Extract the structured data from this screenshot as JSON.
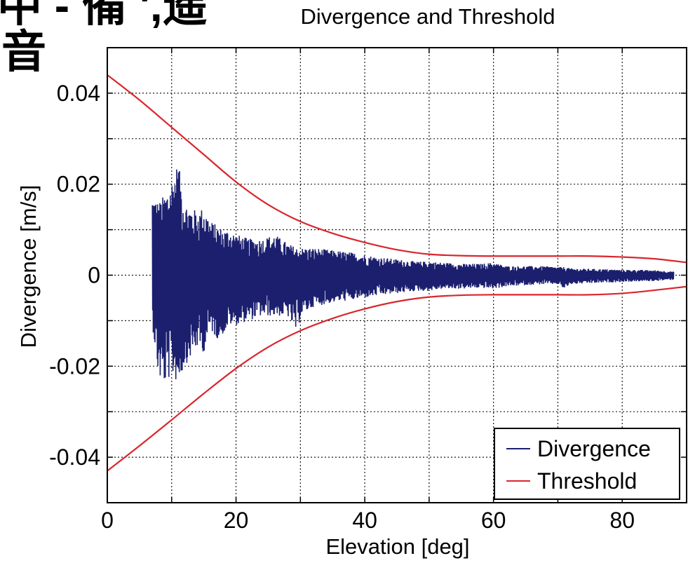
{
  "corner_text": {
    "line1": "中 - 備 ',遥",
    "line2": "音"
  },
  "colors": {
    "divergence": "#1b1f6e",
    "threshold": "#d9262e",
    "grid": "#1a1a1a",
    "axis": "#000000",
    "background": "#ffffff"
  },
  "chart_data": {
    "type": "line",
    "title": "Divergence  and Threshold",
    "xlabel": "Elevation [deg]",
    "ylabel": "Divergence [m/s]",
    "xlim": [
      0,
      90
    ],
    "ylim": [
      -0.05,
      0.05
    ],
    "grid": true,
    "grid_style": "dotted",
    "xticks": [
      0,
      10,
      20,
      30,
      40,
      50,
      60,
      70,
      80,
      90
    ],
    "yticks": [
      -0.05,
      -0.04,
      -0.03,
      -0.02,
      -0.01,
      0,
      0.01,
      0.02,
      0.03,
      0.04,
      0.05
    ],
    "xtick_labels": [
      {
        "value": 0,
        "label": "0"
      },
      {
        "value": 20,
        "label": "20"
      },
      {
        "value": 40,
        "label": "40"
      },
      {
        "value": 60,
        "label": "60"
      },
      {
        "value": 80,
        "label": "80"
      }
    ],
    "ytick_labels": [
      {
        "value": 0.04,
        "label": "0.04"
      },
      {
        "value": 0.02,
        "label": "0.02"
      },
      {
        "value": 0,
        "label": "0"
      },
      {
        "value": -0.02,
        "label": "-0.02"
      },
      {
        "value": -0.04,
        "label": "-0.04"
      }
    ],
    "legend": {
      "position": "bottom-right",
      "entries": [
        "Divergence",
        "Threshold"
      ]
    },
    "series": [
      {
        "name": "Divergence",
        "kind": "noisy-band",
        "x": [
          7,
          8,
          9,
          10,
          11,
          12,
          13,
          14,
          15,
          16,
          17,
          18,
          19,
          20,
          22,
          24,
          26,
          28,
          29.5,
          30,
          32,
          35,
          38,
          40,
          42,
          45,
          48,
          50,
          52,
          55,
          58,
          60,
          62,
          65,
          68,
          70,
          71,
          72,
          75,
          78,
          80,
          82,
          85,
          88
        ],
        "upper": [
          0.018,
          0.016,
          0.018,
          0.021,
          0.025,
          0.016,
          0.015,
          0.014,
          0.015,
          0.012,
          0.011,
          0.01,
          0.01,
          0.009,
          0.008,
          0.008,
          0.009,
          0.007,
          0.006,
          0.006,
          0.006,
          0.0055,
          0.005,
          0.0045,
          0.004,
          0.0035,
          0.003,
          0.003,
          0.0028,
          0.0025,
          0.0025,
          0.0028,
          0.002,
          0.002,
          0.002,
          0.0018,
          0.0018,
          0.0015,
          0.0014,
          0.0013,
          0.0012,
          0.0012,
          0.0011,
          0.0008
        ],
        "lower": [
          -0.011,
          -0.023,
          -0.024,
          -0.022,
          -0.024,
          -0.02,
          -0.018,
          -0.016,
          -0.017,
          -0.012,
          -0.014,
          -0.013,
          -0.011,
          -0.011,
          -0.01,
          -0.009,
          -0.009,
          -0.009,
          -0.013,
          -0.009,
          -0.007,
          -0.006,
          -0.0055,
          -0.005,
          -0.0045,
          -0.004,
          -0.0035,
          -0.0035,
          -0.003,
          -0.003,
          -0.0028,
          -0.003,
          -0.0025,
          -0.0022,
          -0.002,
          -0.002,
          -0.003,
          -0.002,
          -0.0018,
          -0.0016,
          -0.0015,
          -0.0014,
          -0.0013,
          -0.001
        ]
      },
      {
        "name": "Threshold",
        "kind": "envelope",
        "x": [
          0,
          5,
          10,
          15,
          20,
          25,
          30,
          35,
          40,
          45,
          50,
          55,
          60,
          65,
          70,
          75,
          80,
          85,
          90
        ],
        "upper": [
          0.044,
          0.0385,
          0.0325,
          0.0265,
          0.0205,
          0.0155,
          0.0118,
          0.0092,
          0.0072,
          0.0056,
          0.0046,
          0.0043,
          0.0042,
          0.0042,
          0.0042,
          0.0042,
          0.004,
          0.0036,
          0.0028
        ],
        "lower": [
          -0.043,
          -0.0375,
          -0.0318,
          -0.026,
          -0.0205,
          -0.0158,
          -0.0122,
          -0.0095,
          -0.0074,
          -0.0058,
          -0.0048,
          -0.0044,
          -0.0043,
          -0.0043,
          -0.0043,
          -0.0043,
          -0.004,
          -0.0033,
          -0.0025
        ]
      }
    ]
  }
}
